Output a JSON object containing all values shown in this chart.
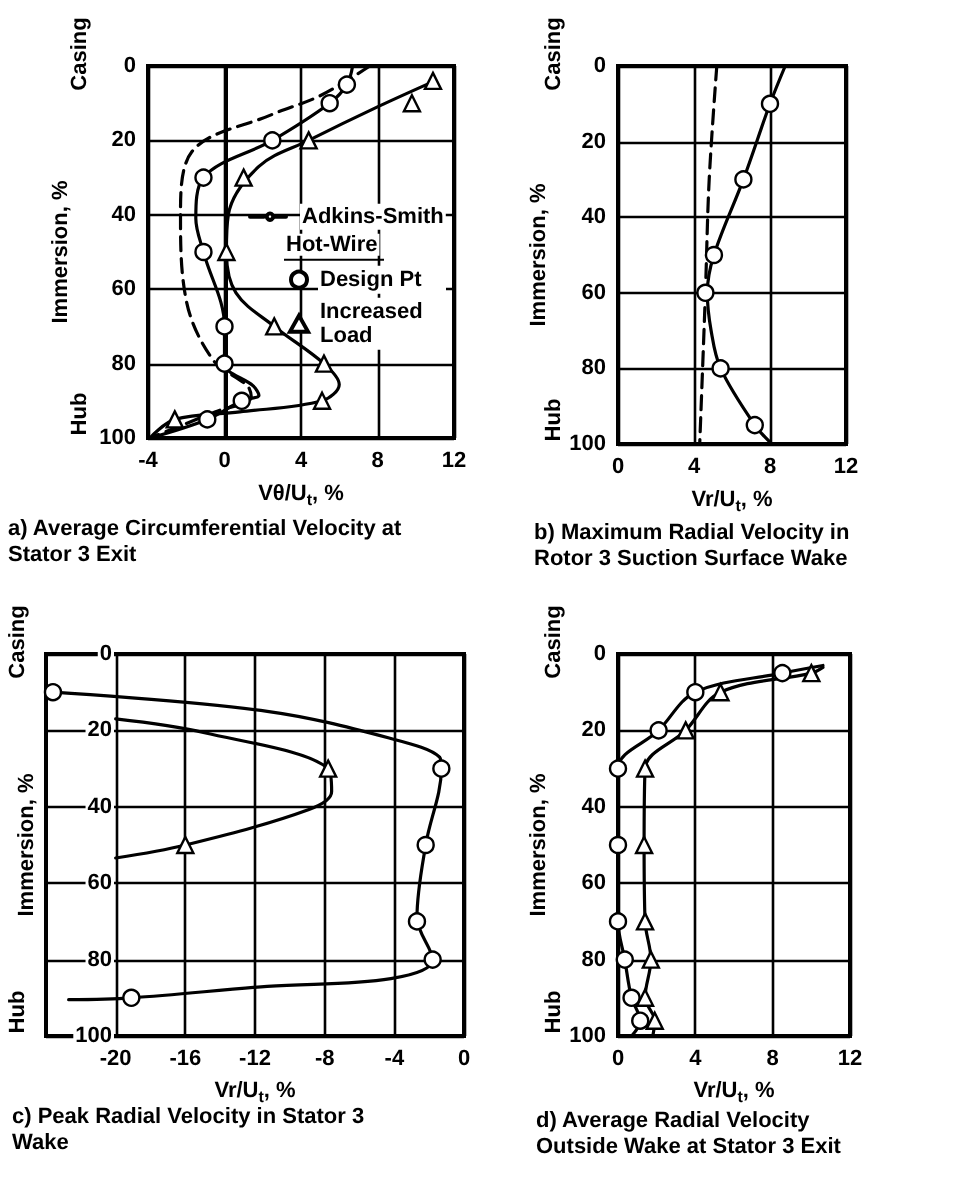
{
  "chart_data": [
    {
      "type": "line",
      "title": "a) Average Circumferential Velocity at Stator 3 Exit",
      "xlabel": "Vθ/U$_{t}$, %",
      "ylabel": "Immersion, %",
      "annotations": [
        "Casing",
        "Hub"
      ],
      "legend": "right",
      "legend_title": "Hot-Wire",
      "grid": true,
      "xlim": [
        -4,
        12
      ],
      "xticks": [
        -4,
        0,
        4,
        8,
        12
      ],
      "ylim": [
        100,
        0
      ],
      "yticks": [
        0,
        20,
        40,
        60,
        80,
        100
      ],
      "series": [
        {
          "name": "Adkins-Smith",
          "type": "line",
          "line_style": "dashed",
          "marker": "none",
          "color": "#000000",
          "x": [
            7.6,
            5,
            2.5,
            -1.7,
            -2.3,
            -2,
            -0.6,
            1.2,
            1.4,
            -0.5,
            -3.9
          ],
          "values": [
            0,
            8,
            13,
            23,
            40,
            63,
            79,
            86,
            89,
            93,
            100
          ]
        },
        {
          "type": "line",
          "line_style": "solid",
          "marker": "none",
          "color": "#000000",
          "x": [
            6.7,
            6.4,
            5.5,
            2.5,
            -1.1,
            -1.5,
            -1.1,
            0,
            0,
            1.5,
            1.8,
            0.9,
            -0.9,
            -3.9
          ],
          "values": [
            0,
            5,
            10,
            20,
            30,
            41,
            50,
            70,
            80,
            86,
            88.5,
            90,
            95,
            100
          ]
        },
        {
          "type": "line",
          "line_style": "solid",
          "marker": "none",
          "color": "#000000",
          "x": [
            11,
            8,
            4.4,
            1.8,
            0.2,
            0.1,
            0.6,
            2.6,
            5.2,
            6,
            5.1,
            0.8,
            -2.6,
            -3.9
          ],
          "values": [
            4,
            11,
            20,
            27,
            40,
            50,
            61,
            70,
            80,
            85.6,
            90,
            93,
            95,
            100
          ]
        },
        {
          "name": "Design Pt",
          "type": "scatter",
          "marker": "circle",
          "color": "#000000",
          "x": [
            6.4,
            5.5,
            2.5,
            -1.1,
            -1.1,
            0,
            0,
            0.9,
            -0.9
          ],
          "values": [
            5,
            10,
            20,
            30,
            50,
            70,
            80,
            90,
            95
          ]
        },
        {
          "name": "Increased Load",
          "type": "scatter",
          "marker": "triangle",
          "color": "#000000",
          "x": [
            10.9,
            9.8,
            4.4,
            1,
            0.1,
            2.6,
            5.2,
            5.1,
            -2.6
          ],
          "values": [
            4,
            10,
            20,
            30,
            50,
            70,
            80,
            90,
            95
          ]
        }
      ]
    },
    {
      "type": "line",
      "title": "b) Maximum Radial Velocity in Rotor 3 Suction Surface Wake",
      "xlabel": "Vr/U$_{t}$, %",
      "ylabel": "Immersion, %",
      "annotations": [
        "Casing",
        "Hub"
      ],
      "grid": true,
      "xlim": [
        0,
        12
      ],
      "xticks": [
        0,
        4,
        8,
        12
      ],
      "ylim": [
        100,
        0
      ],
      "yticks": [
        0,
        20,
        40,
        60,
        80,
        100
      ],
      "series": [
        {
          "type": "line",
          "line_style": "dashed",
          "marker": "none",
          "color": "#000000",
          "x": [
            5.2,
            4.8,
            4.6,
            4.3
          ],
          "values": [
            0,
            30,
            60,
            100
          ]
        },
        {
          "type": "line",
          "line_style": "solid",
          "marker": "none",
          "color": "#000000",
          "x": [
            8.8,
            8,
            6.6,
            5.05,
            4.7,
            4.9,
            5.4,
            7.2,
            8.1
          ],
          "values": [
            0,
            10,
            30,
            50,
            60,
            70,
            80,
            95,
            100
          ]
        },
        {
          "type": "scatter",
          "marker": "circle",
          "color": "#000000",
          "x": [
            8,
            6.6,
            5.05,
            4.6,
            5.4,
            7.2
          ],
          "values": [
            10,
            30,
            50,
            60,
            80,
            95
          ]
        }
      ]
    },
    {
      "type": "line",
      "title": "c) Peak Radial Velocity in Stator 3 Wake",
      "xlabel": "Vr/U$_{t}$, %",
      "ylabel": "Immersion, %",
      "annotations": [
        "Casing",
        "Hub"
      ],
      "grid": true,
      "xlim": [
        -24,
        0
      ],
      "xticks": [
        -20,
        -16,
        -12,
        -8,
        -4,
        0
      ],
      "ylim": [
        100,
        0
      ],
      "yticks": [
        0,
        20,
        40,
        60,
        80,
        100
      ],
      "series": [
        {
          "type": "line",
          "line_style": "solid",
          "marker": "none",
          "color": "#000000",
          "x": [
            -23.6,
            -11.3,
            -4.3,
            -1.4,
            -1.3,
            -2.2,
            -2.7,
            -1.8,
            -4.2,
            -11.3,
            -19.1,
            -22.7
          ],
          "values": [
            10,
            15,
            22,
            27,
            30,
            50,
            69,
            80,
            85,
            87,
            90,
            90.5
          ]
        },
        {
          "type": "line",
          "line_style": "solid",
          "marker": "none",
          "color": "#000000",
          "x": [
            -20,
            -14.9,
            -7.8,
            -7.6,
            -8.9,
            -16,
            -20
          ],
          "values": [
            17,
            20.6,
            30,
            36,
            40.7,
            50,
            53.4
          ]
        },
        {
          "type": "scatter",
          "marker": "circle",
          "color": "#000000",
          "x": [
            -23.6,
            -1.3,
            -2.2,
            -2.7,
            -1.8,
            -19.1
          ],
          "values": [
            10,
            30,
            50,
            70,
            80,
            90
          ]
        },
        {
          "type": "scatter",
          "marker": "triangle",
          "color": "#000000",
          "x": [
            -7.8,
            -16
          ],
          "values": [
            30,
            50
          ]
        }
      ]
    },
    {
      "type": "line",
      "title": "d) Average Radial Velocity Outside Wake at Stator 3 Exit",
      "xlabel": "Vr/U$_{t}$, %",
      "ylabel": "Immersion, %",
      "annotations": [
        "Casing",
        "Hub"
      ],
      "grid": true,
      "xlim": [
        0,
        12
      ],
      "xticks": [
        0,
        4,
        8,
        12
      ],
      "ylim": [
        100,
        0
      ],
      "yticks": [
        0,
        20,
        40,
        60,
        80,
        100
      ],
      "series": [
        {
          "type": "line",
          "line_style": "solid",
          "marker": "none",
          "color": "#000000",
          "x": [
            10.6,
            8.5,
            4,
            2.1,
            0,
            0,
            0,
            0.35,
            0.7,
            1.15,
            0.7
          ],
          "values": [
            3,
            5,
            10,
            20,
            30,
            50,
            70,
            80,
            90,
            96,
            100
          ]
        },
        {
          "type": "line",
          "line_style": "solid",
          "marker": "none",
          "color": "#000000",
          "x": [
            10.6,
            10,
            5.3,
            3.5,
            1.4,
            1.35,
            1.4,
            1.7,
            1.4,
            1.9,
            1.8
          ],
          "values": [
            3.5,
            5,
            10,
            20,
            30,
            50,
            70,
            80,
            90,
            96,
            100
          ]
        },
        {
          "type": "scatter",
          "marker": "circle",
          "color": "#000000",
          "x": [
            8.5,
            4,
            2.1,
            0,
            0,
            0,
            0.35,
            0.7,
            1.15
          ],
          "values": [
            5,
            10,
            20,
            30,
            50,
            70,
            80,
            90,
            96
          ]
        },
        {
          "type": "scatter",
          "marker": "triangle",
          "color": "#000000",
          "x": [
            10,
            5.3,
            3.5,
            1.4,
            1.35,
            1.4,
            1.7,
            1.4,
            1.9
          ],
          "values": [
            5,
            10,
            20,
            30,
            50,
            70,
            80,
            90,
            96
          ]
        }
      ]
    }
  ]
}
